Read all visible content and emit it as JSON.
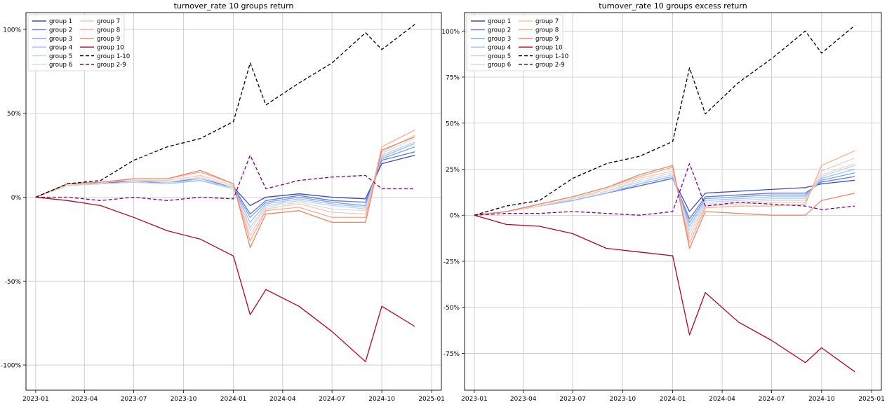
{
  "chart_data": [
    {
      "type": "line",
      "title": "turnover_rate 10 groups return",
      "xlabel": "",
      "ylabel": "",
      "x": [
        "2023-01",
        "2023-03",
        "2023-05",
        "2023-07",
        "2023-09",
        "2023-11",
        "2024-01",
        "2024-02",
        "2024-03",
        "2024-05",
        "2024-07",
        "2024-09",
        "2024-10",
        "2024-12"
      ],
      "xticks": [
        "2023-01",
        "2023-04",
        "2023-07",
        "2023-10",
        "2024-01",
        "2024-04",
        "2024-07",
        "2024-10",
        "2025-01"
      ],
      "yticks": [
        -1.0,
        -0.5,
        0.0,
        0.5,
        1.0
      ],
      "ytick_labels": [
        "-100%",
        "-50%",
        "0%",
        "50%",
        "100%"
      ],
      "ylim": [
        -1.15,
        1.1
      ],
      "grid": true,
      "legend_position": "top-left",
      "series": [
        {
          "name": "group 1",
          "color": "#3b4cc0",
          "style": "solid",
          "values": [
            0,
            0.08,
            0.08,
            0.1,
            0.09,
            0.11,
            0.06,
            -0.05,
            0.0,
            0.02,
            0.0,
            -0.01,
            0.2,
            0.25
          ]
        },
        {
          "name": "group 2",
          "color": "#5a78e4",
          "style": "solid",
          "values": [
            0,
            0.08,
            0.08,
            0.09,
            0.09,
            0.11,
            0.06,
            -0.1,
            -0.02,
            0.01,
            -0.02,
            -0.03,
            0.22,
            0.27
          ]
        },
        {
          "name": "group 3",
          "color": "#7b9ff9",
          "style": "solid",
          "values": [
            0,
            0.07,
            0.08,
            0.09,
            0.08,
            0.1,
            0.05,
            -0.12,
            -0.03,
            0.0,
            -0.03,
            -0.05,
            0.23,
            0.3
          ]
        },
        {
          "name": "group 4",
          "color": "#9ebeff",
          "style": "solid",
          "values": [
            0,
            0.07,
            0.08,
            0.09,
            0.08,
            0.1,
            0.05,
            -0.15,
            -0.04,
            -0.01,
            -0.04,
            -0.06,
            0.24,
            0.32
          ]
        },
        {
          "name": "group 5",
          "color": "#c0d4f5",
          "style": "solid",
          "values": [
            0,
            0.07,
            0.08,
            0.09,
            0.08,
            0.11,
            0.05,
            -0.18,
            -0.05,
            -0.02,
            -0.05,
            -0.07,
            0.25,
            0.33
          ]
        },
        {
          "name": "group 6",
          "color": "#dddcdc",
          "style": "solid",
          "values": [
            0,
            0.07,
            0.09,
            0.1,
            0.09,
            0.12,
            0.06,
            -0.2,
            -0.06,
            -0.03,
            -0.07,
            -0.08,
            0.26,
            0.35
          ]
        },
        {
          "name": "group 7",
          "color": "#f2cbb7",
          "style": "solid",
          "values": [
            0,
            0.07,
            0.09,
            0.1,
            0.1,
            0.13,
            0.07,
            -0.23,
            -0.07,
            -0.04,
            -0.09,
            -0.1,
            0.27,
            0.37
          ]
        },
        {
          "name": "group 8",
          "color": "#f7ac8e",
          "style": "solid",
          "values": [
            0,
            0.08,
            0.09,
            0.11,
            0.11,
            0.15,
            0.08,
            -0.26,
            -0.08,
            -0.06,
            -0.12,
            -0.12,
            0.3,
            0.4
          ]
        },
        {
          "name": "group 9",
          "color": "#ee8468",
          "style": "solid",
          "values": [
            0,
            0.08,
            0.09,
            0.11,
            0.11,
            0.16,
            0.08,
            -0.3,
            -0.1,
            -0.08,
            -0.15,
            -0.15,
            0.28,
            0.36
          ]
        },
        {
          "name": "group 10",
          "color": "#b40426",
          "style": "solid",
          "values": [
            0,
            -0.02,
            -0.05,
            -0.12,
            -0.2,
            -0.25,
            -0.35,
            -0.7,
            -0.55,
            -0.65,
            -0.8,
            -0.98,
            -0.65,
            -0.77
          ]
        },
        {
          "name": "group 1-10",
          "color": "#000000",
          "style": "dashed",
          "values": [
            0,
            0.08,
            0.1,
            0.22,
            0.3,
            0.35,
            0.45,
            0.8,
            0.55,
            0.68,
            0.8,
            0.98,
            0.88,
            1.03
          ]
        },
        {
          "name": "group 2-9",
          "color": "#800080",
          "style": "dashed",
          "values": [
            0,
            0.0,
            -0.02,
            0.0,
            -0.02,
            0.0,
            -0.01,
            0.25,
            0.05,
            0.1,
            0.12,
            0.13,
            0.05,
            0.05
          ]
        }
      ]
    },
    {
      "type": "line",
      "title": "turnover_rate 10 groups excess return",
      "xlabel": "",
      "ylabel": "",
      "x": [
        "2023-01",
        "2023-03",
        "2023-05",
        "2023-07",
        "2023-09",
        "2023-11",
        "2024-01",
        "2024-02",
        "2024-03",
        "2024-05",
        "2024-07",
        "2024-09",
        "2024-10",
        "2024-12"
      ],
      "xticks": [
        "2023-01",
        "2023-04",
        "2023-07",
        "2023-10",
        "2024-01",
        "2024-04",
        "2024-07",
        "2024-10",
        "2025-01"
      ],
      "yticks": [
        -0.75,
        -0.5,
        -0.25,
        0.0,
        0.25,
        0.5,
        0.75,
        1.0
      ],
      "ytick_labels": [
        "-75%",
        "-50%",
        "-25%",
        "0%",
        "25%",
        "50%",
        "75%",
        "100%"
      ],
      "ylim": [
        -0.95,
        1.1
      ],
      "grid": true,
      "legend_position": "top-left",
      "series": [
        {
          "name": "group 1",
          "color": "#3b4cc0",
          "style": "solid",
          "values": [
            0,
            0.02,
            0.05,
            0.08,
            0.12,
            0.16,
            0.2,
            0.02,
            0.12,
            0.13,
            0.14,
            0.15,
            0.17,
            0.19
          ]
        },
        {
          "name": "group 2",
          "color": "#5a78e4",
          "style": "solid",
          "values": [
            0,
            0.02,
            0.05,
            0.08,
            0.12,
            0.16,
            0.2,
            -0.02,
            0.1,
            0.11,
            0.12,
            0.12,
            0.18,
            0.21
          ]
        },
        {
          "name": "group 3",
          "color": "#7b9ff9",
          "style": "solid",
          "values": [
            0,
            0.02,
            0.05,
            0.08,
            0.12,
            0.17,
            0.21,
            -0.04,
            0.09,
            0.1,
            0.11,
            0.11,
            0.19,
            0.23
          ]
        },
        {
          "name": "group 4",
          "color": "#9ebeff",
          "style": "solid",
          "values": [
            0,
            0.02,
            0.05,
            0.08,
            0.12,
            0.17,
            0.21,
            -0.06,
            0.08,
            0.09,
            0.1,
            0.1,
            0.2,
            0.25
          ]
        },
        {
          "name": "group 5",
          "color": "#c0d4f5",
          "style": "solid",
          "values": [
            0,
            0.02,
            0.05,
            0.09,
            0.13,
            0.18,
            0.22,
            -0.08,
            0.07,
            0.08,
            0.09,
            0.09,
            0.21,
            0.27
          ]
        },
        {
          "name": "group 6",
          "color": "#dddcdc",
          "style": "solid",
          "values": [
            0,
            0.02,
            0.05,
            0.09,
            0.13,
            0.19,
            0.23,
            -0.1,
            0.06,
            0.07,
            0.08,
            0.08,
            0.22,
            0.28
          ]
        },
        {
          "name": "group 7",
          "color": "#f2cbb7",
          "style": "solid",
          "values": [
            0,
            0.02,
            0.05,
            0.09,
            0.14,
            0.2,
            0.24,
            -0.12,
            0.05,
            0.06,
            0.07,
            0.07,
            0.24,
            0.31
          ]
        },
        {
          "name": "group 8",
          "color": "#f7ac8e",
          "style": "solid",
          "values": [
            0,
            0.02,
            0.06,
            0.1,
            0.15,
            0.21,
            0.26,
            -0.15,
            0.04,
            0.05,
            0.05,
            0.06,
            0.27,
            0.35
          ]
        },
        {
          "name": "group 9",
          "color": "#ee8468",
          "style": "solid",
          "values": [
            0,
            0.02,
            0.06,
            0.1,
            0.15,
            0.22,
            0.27,
            -0.18,
            0.02,
            0.01,
            0.0,
            0.0,
            0.08,
            0.12
          ]
        },
        {
          "name": "group 10",
          "color": "#b40426",
          "style": "solid",
          "values": [
            0,
            -0.05,
            -0.06,
            -0.1,
            -0.18,
            -0.2,
            -0.22,
            -0.65,
            -0.42,
            -0.58,
            -0.68,
            -0.8,
            -0.72,
            -0.85
          ]
        },
        {
          "name": "group 1-10",
          "color": "#000000",
          "style": "dashed",
          "values": [
            0,
            0.05,
            0.08,
            0.2,
            0.28,
            0.32,
            0.4,
            0.8,
            0.55,
            0.72,
            0.85,
            1.0,
            0.88,
            1.03
          ]
        },
        {
          "name": "group 2-9",
          "color": "#800080",
          "style": "dashed",
          "values": [
            0,
            0.01,
            0.01,
            0.02,
            0.01,
            0.0,
            0.02,
            0.28,
            0.05,
            0.07,
            0.06,
            0.05,
            0.03,
            0.05
          ]
        }
      ]
    }
  ]
}
